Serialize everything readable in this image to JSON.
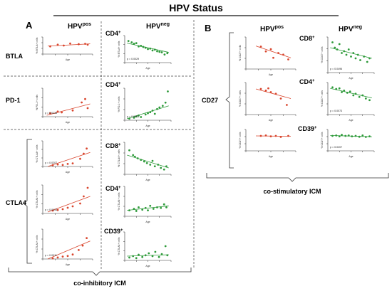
{
  "title": "HPV Status",
  "panel_a": {
    "label": "A",
    "col_pos": {
      "base": "HPV",
      "sup": "pos"
    },
    "col_neg": {
      "base": "HPV",
      "sup": "neg"
    },
    "rows": [
      "BTLA",
      "PD-1",
      "CTLA4"
    ],
    "footer": "co-inhibitory ICM"
  },
  "panel_b": {
    "label": "B",
    "col_pos": {
      "base": "HPV",
      "sup": "pos"
    },
    "col_neg": {
      "base": "HPV",
      "sup": "neg"
    },
    "row": "CD27",
    "footer": "co-stimulatory ICM"
  },
  "subset_labels": [
    {
      "base": "CD4",
      "sup": "+"
    },
    {
      "base": "CD4",
      "sup": "+"
    },
    {
      "base": "CD8",
      "sup": "+"
    },
    {
      "base": "CD4",
      "sup": "+"
    },
    {
      "base": "CD39",
      "sup": "+"
    },
    {
      "base": "CD8",
      "sup": "+"
    },
    {
      "base": "CD4",
      "sup": "+"
    },
    {
      "base": "CD39",
      "sup": "+"
    }
  ],
  "colors": {
    "pos": "#d9462e",
    "neg": "#2e9a3a",
    "axis": "#333333"
  },
  "plots": [
    {
      "id": "btla-pos",
      "color": "pos",
      "xlabel": "Age",
      "ylabel": "% BTLA+ cells",
      "p": "",
      "points": [
        [
          0.15,
          0.45
        ],
        [
          0.3,
          0.55
        ],
        [
          0.42,
          0.5
        ],
        [
          0.55,
          0.62
        ],
        [
          0.72,
          0.58
        ],
        [
          0.85,
          0.6
        ],
        [
          0.9,
          0.55
        ]
      ],
      "line": [
        [
          0.1,
          0.47
        ],
        [
          0.95,
          0.6
        ]
      ]
    },
    {
      "id": "btla-neg",
      "color": "neg",
      "xlabel": "Age",
      "ylabel": "% BTLA+ cells",
      "p": "p = 0.0029",
      "points": [
        [
          0.08,
          0.8
        ],
        [
          0.15,
          0.75
        ],
        [
          0.2,
          0.7
        ],
        [
          0.25,
          0.72
        ],
        [
          0.3,
          0.6
        ],
        [
          0.35,
          0.62
        ],
        [
          0.4,
          0.58
        ],
        [
          0.45,
          0.55
        ],
        [
          0.5,
          0.5
        ],
        [
          0.55,
          0.52
        ],
        [
          0.6,
          0.45
        ],
        [
          0.65,
          0.48
        ],
        [
          0.7,
          0.42
        ],
        [
          0.75,
          0.4
        ],
        [
          0.8,
          0.38
        ],
        [
          0.86,
          0.3
        ],
        [
          0.92,
          0.35
        ]
      ],
      "line": [
        [
          0.05,
          0.72
        ],
        [
          0.95,
          0.38
        ]
      ]
    },
    {
      "id": "pd1-pos",
      "color": "pos",
      "xlabel": "Age",
      "ylabel": "% PD-1+ cells",
      "p": "p = 0.0238",
      "points": [
        [
          0.15,
          0.12
        ],
        [
          0.3,
          0.18
        ],
        [
          0.38,
          0.15
        ],
        [
          0.6,
          0.22
        ],
        [
          0.78,
          0.5
        ],
        [
          0.85,
          0.62
        ],
        [
          0.9,
          0.3
        ]
      ],
      "line": [
        [
          0.08,
          0.05
        ],
        [
          0.95,
          0.45
        ]
      ]
    },
    {
      "id": "pd1-neg",
      "color": "neg",
      "xlabel": "Age",
      "ylabel": "% PD-1+ cells",
      "p": "p = 0.0051",
      "points": [
        [
          0.1,
          0.05
        ],
        [
          0.2,
          0.08
        ],
        [
          0.25,
          0.12
        ],
        [
          0.3,
          0.15
        ],
        [
          0.35,
          0.1
        ],
        [
          0.45,
          0.18
        ],
        [
          0.5,
          0.22
        ],
        [
          0.55,
          0.25
        ],
        [
          0.6,
          0.3
        ],
        [
          0.65,
          0.2
        ],
        [
          0.7,
          0.35
        ],
        [
          0.75,
          0.4
        ],
        [
          0.82,
          0.45
        ],
        [
          0.88,
          0.55
        ],
        [
          0.93,
          0.9
        ]
      ],
      "line": [
        [
          0.05,
          0.05
        ],
        [
          0.95,
          0.45
        ]
      ]
    },
    {
      "id": "ctla4-cd8-pos",
      "color": "pos",
      "xlabel": "Age",
      "ylabel": "% CTLA4+ cells",
      "p": "p = 0.0207",
      "points": [
        [
          0.2,
          0.05
        ],
        [
          0.3,
          0.08
        ],
        [
          0.4,
          0.06
        ],
        [
          0.5,
          0.1
        ],
        [
          0.6,
          0.12
        ],
        [
          0.75,
          0.3
        ],
        [
          0.82,
          0.5
        ],
        [
          0.88,
          0.7
        ]
      ],
      "line": [
        [
          0.1,
          0.0
        ],
        [
          0.95,
          0.55
        ]
      ]
    },
    {
      "id": "ctla4-cd8-neg",
      "color": "neg",
      "xlabel": "Age",
      "ylabel": "% CTLA4+ cells",
      "p": "",
      "points": [
        [
          0.1,
          0.75
        ],
        [
          0.18,
          0.6
        ],
        [
          0.22,
          0.55
        ],
        [
          0.28,
          0.5
        ],
        [
          0.35,
          0.45
        ],
        [
          0.42,
          0.4
        ],
        [
          0.48,
          0.35
        ],
        [
          0.55,
          0.3
        ],
        [
          0.6,
          0.42
        ],
        [
          0.65,
          0.25
        ],
        [
          0.72,
          0.3
        ],
        [
          0.78,
          0.2
        ],
        [
          0.85,
          0.15
        ],
        [
          0.9,
          0.25
        ]
      ],
      "line": [
        [
          0.05,
          0.6
        ],
        [
          0.95,
          0.2
        ]
      ]
    },
    {
      "id": "ctla4-cd4-pos",
      "color": "pos",
      "xlabel": "Age",
      "ylabel": "% CTLA4+ cells",
      "p": "p = 0.0433",
      "points": [
        [
          0.2,
          0.1
        ],
        [
          0.3,
          0.12
        ],
        [
          0.4,
          0.15
        ],
        [
          0.5,
          0.2
        ],
        [
          0.6,
          0.25
        ],
        [
          0.75,
          0.35
        ],
        [
          0.82,
          0.6
        ],
        [
          0.9,
          0.9
        ]
      ],
      "line": [
        [
          0.1,
          0.05
        ],
        [
          0.95,
          0.6
        ]
      ]
    },
    {
      "id": "ctla4-cd4-neg",
      "color": "neg",
      "xlabel": "Age",
      "ylabel": "% CTLA4+ cells",
      "p": "",
      "points": [
        [
          0.1,
          0.2
        ],
        [
          0.2,
          0.25
        ],
        [
          0.25,
          0.18
        ],
        [
          0.3,
          0.3
        ],
        [
          0.38,
          0.22
        ],
        [
          0.45,
          0.28
        ],
        [
          0.5,
          0.2
        ],
        [
          0.55,
          0.35
        ],
        [
          0.62,
          0.25
        ],
        [
          0.7,
          0.3
        ],
        [
          0.78,
          0.28
        ],
        [
          0.85,
          0.4
        ],
        [
          0.9,
          0.3
        ]
      ],
      "line": [
        [
          0.05,
          0.2
        ],
        [
          0.95,
          0.35
        ]
      ]
    },
    {
      "id": "ctla4-cd39-pos",
      "color": "pos",
      "xlabel": "Age",
      "ylabel": "% CTLA4+ cells",
      "p": "p = 0.0011",
      "points": [
        [
          0.2,
          0.02
        ],
        [
          0.3,
          0.05
        ],
        [
          0.4,
          0.08
        ],
        [
          0.5,
          0.1
        ],
        [
          0.6,
          0.15
        ],
        [
          0.72,
          0.3
        ],
        [
          0.8,
          0.45
        ],
        [
          0.88,
          0.7
        ]
      ],
      "line": [
        [
          0.1,
          0.0
        ],
        [
          0.95,
          0.6
        ]
      ]
    },
    {
      "id": "ctla4-cd39-neg",
      "color": "neg",
      "xlabel": "Age",
      "ylabel": "% CTLA4+ cells",
      "p": "",
      "points": [
        [
          0.1,
          0.1
        ],
        [
          0.18,
          0.15
        ],
        [
          0.25,
          0.08
        ],
        [
          0.3,
          0.2
        ],
        [
          0.38,
          0.12
        ],
        [
          0.45,
          0.18
        ],
        [
          0.52,
          0.25
        ],
        [
          0.6,
          0.15
        ],
        [
          0.66,
          0.3
        ],
        [
          0.74,
          0.12
        ],
        [
          0.8,
          0.22
        ],
        [
          0.88,
          0.5
        ],
        [
          0.92,
          0.18
        ]
      ],
      "line": [
        [
          0.05,
          0.15
        ],
        [
          0.95,
          0.2
        ]
      ]
    },
    {
      "id": "cd27-cd8-pos",
      "color": "pos",
      "xlabel": "Age",
      "ylabel": "% CD27+ cells",
      "p": "",
      "points": [
        [
          0.3,
          0.7
        ],
        [
          0.4,
          0.55
        ],
        [
          0.5,
          0.62
        ],
        [
          0.55,
          0.35
        ],
        [
          0.65,
          0.5
        ],
        [
          0.75,
          0.45
        ],
        [
          0.85,
          0.3
        ]
      ],
      "line": [
        [
          0.2,
          0.72
        ],
        [
          0.9,
          0.35
        ]
      ]
    },
    {
      "id": "cd27-cd8-neg",
      "color": "neg",
      "xlabel": "Age",
      "ylabel": "% CD27+ cells",
      "p": "p = 0.0496",
      "points": [
        [
          0.1,
          0.85
        ],
        [
          0.15,
          0.7
        ],
        [
          0.2,
          0.65
        ],
        [
          0.25,
          0.8
        ],
        [
          0.3,
          0.55
        ],
        [
          0.35,
          0.6
        ],
        [
          0.4,
          0.5
        ],
        [
          0.45,
          0.65
        ],
        [
          0.5,
          0.45
        ],
        [
          0.55,
          0.55
        ],
        [
          0.6,
          0.4
        ],
        [
          0.65,
          0.5
        ],
        [
          0.7,
          0.35
        ],
        [
          0.78,
          0.45
        ],
        [
          0.85,
          0.3
        ],
        [
          0.9,
          0.4
        ]
      ],
      "line": [
        [
          0.05,
          0.7
        ],
        [
          0.95,
          0.4
        ]
      ]
    },
    {
      "id": "cd27-cd4-pos",
      "color": "pos",
      "xlabel": "Age",
      "ylabel": "% CD27+ cells",
      "p": "",
      "points": [
        [
          0.3,
          0.8
        ],
        [
          0.4,
          0.75
        ],
        [
          0.45,
          0.82
        ],
        [
          0.5,
          0.7
        ],
        [
          0.6,
          0.65
        ],
        [
          0.7,
          0.5
        ],
        [
          0.82,
          0.3
        ]
      ],
      "line": [
        [
          0.2,
          0.8
        ],
        [
          0.9,
          0.5
        ]
      ]
    },
    {
      "id": "cd27-cd4-neg",
      "color": "neg",
      "xlabel": "Age",
      "ylabel": "% CD27+ cells",
      "p": "p = 0.0073",
      "points": [
        [
          0.1,
          0.85
        ],
        [
          0.18,
          0.8
        ],
        [
          0.25,
          0.82
        ],
        [
          0.3,
          0.7
        ],
        [
          0.35,
          0.75
        ],
        [
          0.42,
          0.68
        ],
        [
          0.48,
          0.72
        ],
        [
          0.55,
          0.6
        ],
        [
          0.6,
          0.65
        ],
        [
          0.68,
          0.55
        ],
        [
          0.75,
          0.6
        ],
        [
          0.82,
          0.5
        ],
        [
          0.9,
          0.45
        ]
      ],
      "line": [
        [
          0.05,
          0.82
        ],
        [
          0.95,
          0.52
        ]
      ]
    },
    {
      "id": "cd27-cd39-pos",
      "color": "pos",
      "xlabel": "Age",
      "ylabel": "% CD27+ cells",
      "p": "",
      "points": [
        [
          0.3,
          0.7
        ],
        [
          0.4,
          0.72
        ],
        [
          0.5,
          0.68
        ],
        [
          0.6,
          0.7
        ],
        [
          0.7,
          0.65
        ],
        [
          0.85,
          0.7
        ]
      ],
      "line": [
        [
          0.2,
          0.7
        ],
        [
          0.9,
          0.68
        ]
      ]
    },
    {
      "id": "cd27-cd39-neg",
      "color": "neg",
      "xlabel": "Age",
      "ylabel": "% CD27+ cells",
      "p": "p = 0.0207",
      "points": [
        [
          0.1,
          0.7
        ],
        [
          0.18,
          0.72
        ],
        [
          0.25,
          0.68
        ],
        [
          0.3,
          0.75
        ],
        [
          0.38,
          0.7
        ],
        [
          0.45,
          0.72
        ],
        [
          0.52,
          0.68
        ],
        [
          0.6,
          0.7
        ],
        [
          0.68,
          0.66
        ],
        [
          0.75,
          0.72
        ],
        [
          0.82,
          0.65
        ],
        [
          0.9,
          0.68
        ]
      ],
      "line": [
        [
          0.05,
          0.72
        ],
        [
          0.95,
          0.66
        ]
      ]
    }
  ]
}
